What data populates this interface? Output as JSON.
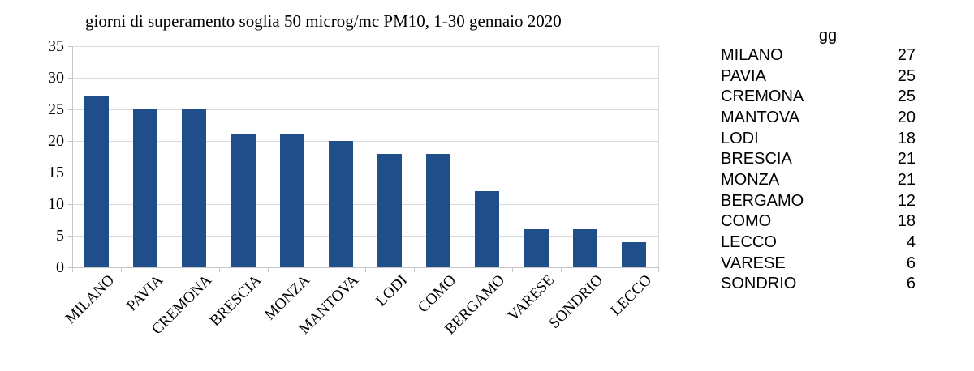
{
  "chart": {
    "title": "giorni di superamento soglia 50 microg/mc PM10, 1-30 gennaio 2020"
  },
  "chart_data": {
    "type": "bar",
    "title": "giorni di superamento soglia 50 microg/mc PM10, 1-30 gennaio 2020",
    "categories": [
      "MILANO",
      "PAVIA",
      "CREMONA",
      "BRESCIA",
      "MONZA",
      "MANTOVA",
      "LODI",
      "COMO",
      "BERGAMO",
      "VARESE",
      "SONDRIO",
      "LECCO"
    ],
    "values": [
      27,
      25,
      25,
      21,
      21,
      20,
      18,
      18,
      12,
      6,
      6,
      4
    ],
    "xlabel": "",
    "ylabel": "",
    "ylim": [
      0,
      35
    ],
    "ytick_interval": 5,
    "yticks": [
      0,
      5,
      10,
      15,
      20,
      25,
      30,
      35
    ],
    "grid": true,
    "legend_position": "none",
    "bar_color": "#1F4E8B",
    "gridline_color": "#DADADA",
    "axis_color": "#C6C6C6",
    "text_color": "#000000"
  },
  "side_table": {
    "value_header": "gg",
    "rows": [
      {
        "label": "MILANO",
        "value": "27"
      },
      {
        "label": "PAVIA",
        "value": "25"
      },
      {
        "label": "CREMONA",
        "value": "25"
      },
      {
        "label": "MANTOVA",
        "value": "20"
      },
      {
        "label": "LODI",
        "value": "18"
      },
      {
        "label": "BRESCIA",
        "value": "21"
      },
      {
        "label": "MONZA",
        "value": "21"
      },
      {
        "label": "BERGAMO",
        "value": "12"
      },
      {
        "label": "COMO",
        "value": "18"
      },
      {
        "label": "LECCO",
        "value": "4"
      },
      {
        "label": "VARESE",
        "value": "6"
      },
      {
        "label": "SONDRIO",
        "value": "6"
      }
    ]
  }
}
